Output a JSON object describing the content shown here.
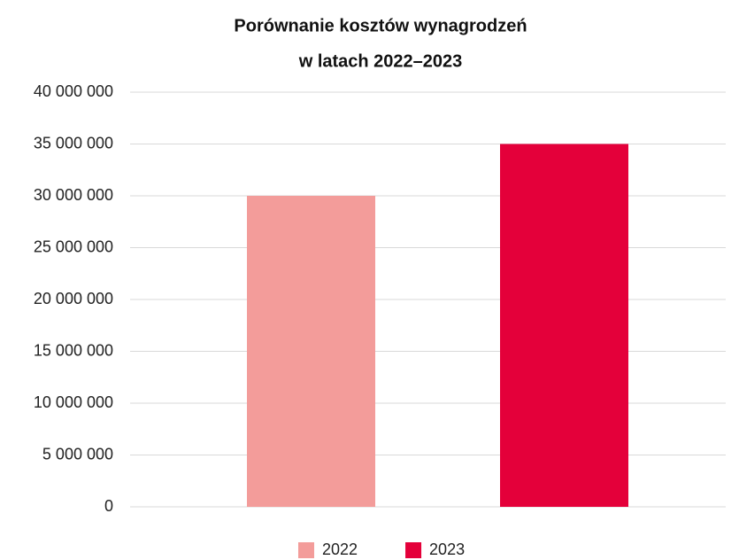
{
  "chart_data": {
    "type": "bar",
    "title": [
      "Porównanie kosztów wynagrodzeń",
      "w latach 2022–2023"
    ],
    "categories": [
      null
    ],
    "series": [
      {
        "name": "2022",
        "color": "#f39c9a",
        "values": [
          30000000
        ]
      },
      {
        "name": "2023",
        "color": "#e4003a",
        "values": [
          35000000
        ]
      }
    ],
    "ylim": [
      0,
      40000000
    ],
    "yticks": [
      {
        "value": 0,
        "label": "0"
      },
      {
        "value": 5000000,
        "label": "5 000 000"
      },
      {
        "value": 10000000,
        "label": "10 000 000"
      },
      {
        "value": 15000000,
        "label": "15 000 000"
      },
      {
        "value": 20000000,
        "label": "20 000 000"
      },
      {
        "value": 25000000,
        "label": "25 000 000"
      },
      {
        "value": 30000000,
        "label": "30 000 000"
      },
      {
        "value": 35000000,
        "label": "35 000 000"
      },
      {
        "value": 40000000,
        "label": "40 000 000"
      }
    ],
    "grid": true,
    "legend": "bottom"
  }
}
